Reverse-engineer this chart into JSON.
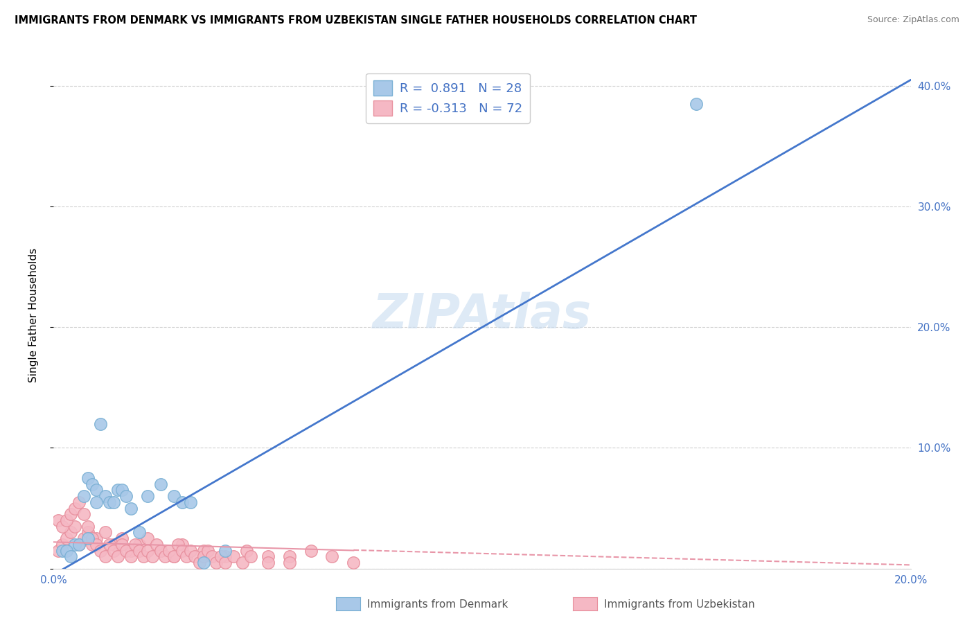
{
  "title": "IMMIGRANTS FROM DENMARK VS IMMIGRANTS FROM UZBEKISTAN SINGLE FATHER HOUSEHOLDS CORRELATION CHART",
  "source": "Source: ZipAtlas.com",
  "ylabel": "Single Father Households",
  "xlim": [
    0.0,
    0.2
  ],
  "ylim": [
    0.0,
    0.42
  ],
  "xticks": [
    0.0,
    0.05,
    0.1,
    0.15,
    0.2
  ],
  "xtick_labels": [
    "0.0%",
    "",
    "",
    "",
    "20.0%"
  ],
  "yticks": [
    0.0,
    0.1,
    0.2,
    0.3,
    0.4
  ],
  "ytick_labels_right": [
    "",
    "10.0%",
    "20.0%",
    "30.0%",
    "40.0%"
  ],
  "denmark_color": "#a8c8e8",
  "denmark_edge_color": "#7ab0d4",
  "uzbekistan_color": "#f5b8c4",
  "uzbekistan_edge_color": "#e8909e",
  "trendline_denmark_color": "#4477cc",
  "trendline_uzbekistan_color": "#e896a8",
  "legend_r_denmark": "0.891",
  "legend_n_denmark": "28",
  "legend_r_uzbekistan": "-0.313",
  "legend_n_uzbekistan": "72",
  "watermark": "ZIPAtlas",
  "denmark_x": [
    0.005,
    0.007,
    0.008,
    0.009,
    0.01,
    0.011,
    0.012,
    0.013,
    0.014,
    0.015,
    0.016,
    0.017,
    0.018,
    0.02,
    0.022,
    0.025,
    0.028,
    0.03,
    0.032,
    0.035,
    0.002,
    0.003,
    0.004,
    0.006,
    0.008,
    0.01,
    0.15,
    0.04
  ],
  "denmark_y": [
    0.02,
    0.06,
    0.075,
    0.07,
    0.065,
    0.12,
    0.06,
    0.055,
    0.055,
    0.065,
    0.065,
    0.06,
    0.05,
    0.03,
    0.06,
    0.07,
    0.06,
    0.055,
    0.055,
    0.005,
    0.015,
    0.015,
    0.01,
    0.02,
    0.025,
    0.055,
    0.385,
    0.015
  ],
  "uzbekistan_x": [
    0.001,
    0.002,
    0.003,
    0.004,
    0.005,
    0.006,
    0.007,
    0.008,
    0.009,
    0.01,
    0.012,
    0.014,
    0.016,
    0.018,
    0.02,
    0.022,
    0.025,
    0.028,
    0.03,
    0.035,
    0.04,
    0.045,
    0.05,
    0.055,
    0.06,
    0.065,
    0.07,
    0.001,
    0.002,
    0.003,
    0.004,
    0.005,
    0.006,
    0.007,
    0.008,
    0.009,
    0.01,
    0.011,
    0.012,
    0.013,
    0.014,
    0.015,
    0.016,
    0.017,
    0.018,
    0.019,
    0.02,
    0.021,
    0.022,
    0.023,
    0.024,
    0.025,
    0.026,
    0.027,
    0.028,
    0.029,
    0.03,
    0.031,
    0.032,
    0.033,
    0.034,
    0.035,
    0.036,
    0.037,
    0.038,
    0.039,
    0.04,
    0.042,
    0.044,
    0.046,
    0.05,
    0.055
  ],
  "uzbekistan_y": [
    0.015,
    0.02,
    0.025,
    0.03,
    0.035,
    0.02,
    0.025,
    0.03,
    0.02,
    0.025,
    0.03,
    0.02,
    0.025,
    0.015,
    0.02,
    0.025,
    0.015,
    0.01,
    0.02,
    0.015,
    0.01,
    0.015,
    0.01,
    0.01,
    0.015,
    0.01,
    0.005,
    0.04,
    0.035,
    0.04,
    0.045,
    0.05,
    0.055,
    0.045,
    0.035,
    0.025,
    0.02,
    0.015,
    0.01,
    0.02,
    0.015,
    0.01,
    0.02,
    0.015,
    0.01,
    0.02,
    0.015,
    0.01,
    0.015,
    0.01,
    0.02,
    0.015,
    0.01,
    0.015,
    0.01,
    0.02,
    0.015,
    0.01,
    0.015,
    0.01,
    0.005,
    0.01,
    0.015,
    0.01,
    0.005,
    0.01,
    0.005,
    0.01,
    0.005,
    0.01,
    0.005,
    0.005
  ],
  "trendline_dk_x0": 0.0,
  "trendline_dk_y0": -0.005,
  "trendline_dk_x1": 0.2,
  "trendline_dk_y1": 0.405,
  "trendline_uz_x0": 0.0,
  "trendline_uz_y0": 0.022,
  "trendline_uz_x1_solid": 0.07,
  "trendline_uz_y1_solid": 0.015,
  "trendline_uz_x1_dash": 0.2,
  "trendline_uz_y1_dash": 0.003
}
